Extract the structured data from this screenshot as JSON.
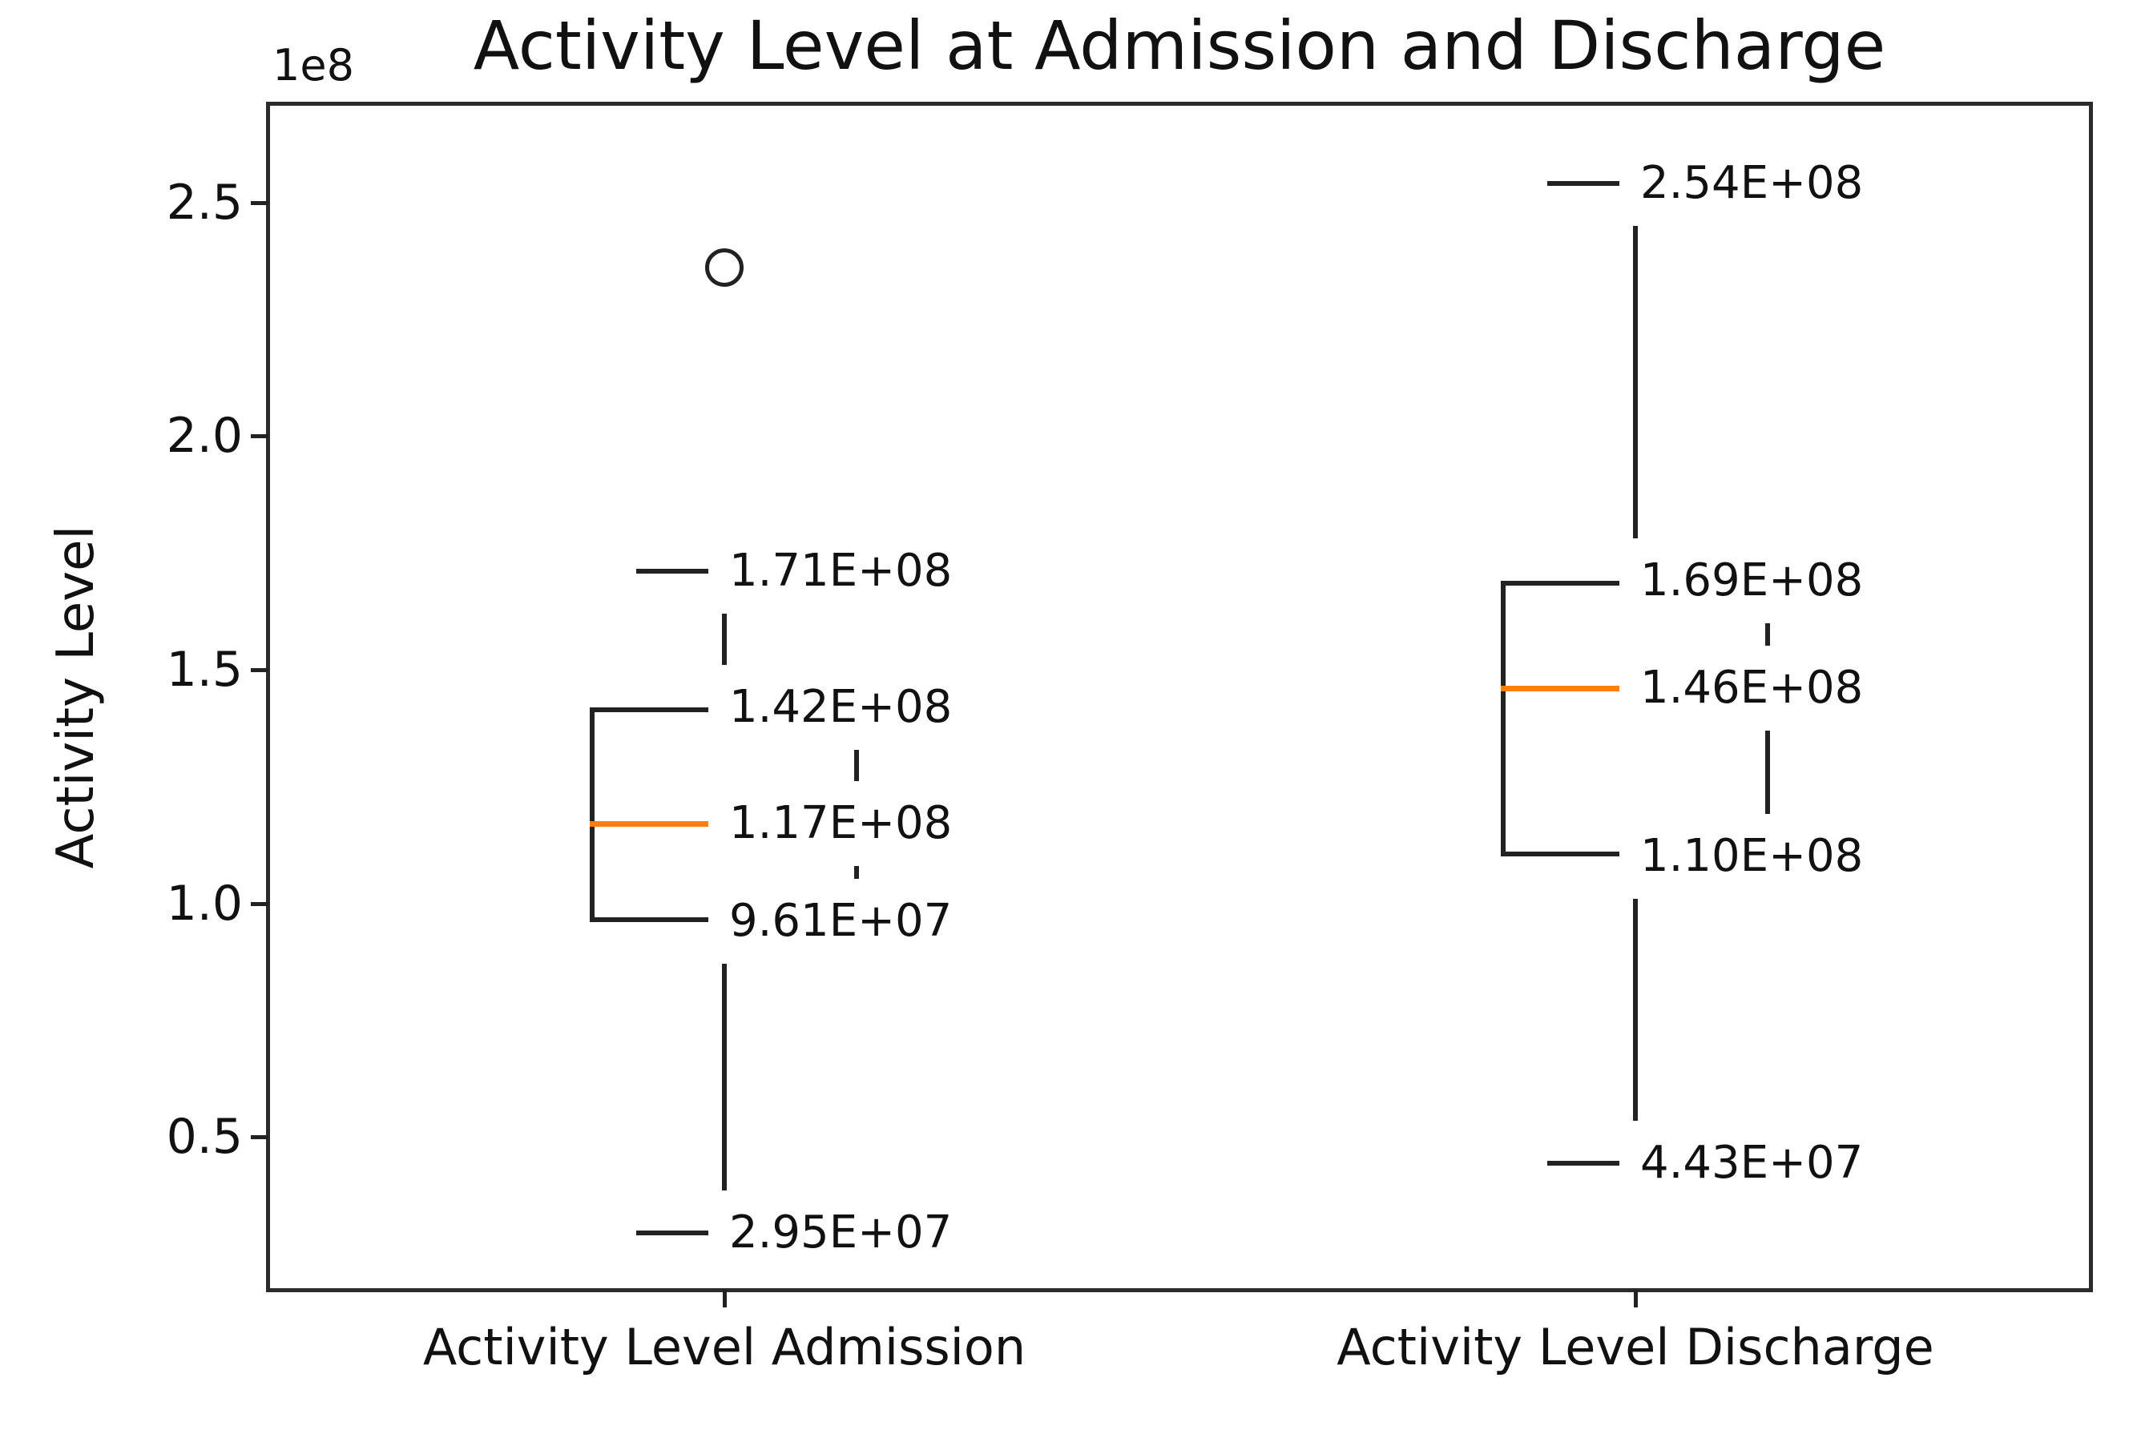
{
  "figure": {
    "background": "#ffffff"
  },
  "chart_data": {
    "type": "boxplot",
    "title": "Activity Level at Admission and Discharge",
    "xlabel": "",
    "ylabel": "Activity Level",
    "y_offset": "1e8",
    "ylim": [
      17300000,
      271000000
    ],
    "grid": false,
    "legend": "none",
    "yticks": [
      {
        "label": "0.5",
        "value": 50000000
      },
      {
        "label": "1.0",
        "value": 100000000
      },
      {
        "label": "1.5",
        "value": 150000000
      },
      {
        "label": "2.0",
        "value": 200000000
      },
      {
        "label": "2.5",
        "value": 250000000
      }
    ],
    "categories": [
      "Activity Level Admission",
      "Activity Level Discharge"
    ],
    "series": [
      {
        "name": "Activity Level Admission",
        "whisker_high": {
          "value": 171000000,
          "label": "1.71E+08"
        },
        "q3": {
          "value": 142000000,
          "label": "1.42E+08"
        },
        "median": {
          "value": 117000000,
          "label": "1.17E+08"
        },
        "q1": {
          "value": 96100000,
          "label": "9.61E+07"
        },
        "whisker_low": {
          "value": 29500000,
          "label": "2.95E+07"
        },
        "outliers": [
          236000000
        ]
      },
      {
        "name": "Activity Level Discharge",
        "whisker_high": {
          "value": 254000000,
          "label": "2.54E+08"
        },
        "q3": {
          "value": 169000000,
          "label": "1.69E+08"
        },
        "median": {
          "value": 146000000,
          "label": "1.46E+08"
        },
        "q1": {
          "value": 110000000,
          "label": "1.10E+08"
        },
        "whisker_low": {
          "value": 44300000,
          "label": "4.43E+07"
        },
        "outliers": []
      }
    ],
    "colors": {
      "median": "#ff7f0e",
      "line": "#222222",
      "frame": "#2b2b2b",
      "text": "#111111",
      "background": "#ffffff"
    }
  }
}
